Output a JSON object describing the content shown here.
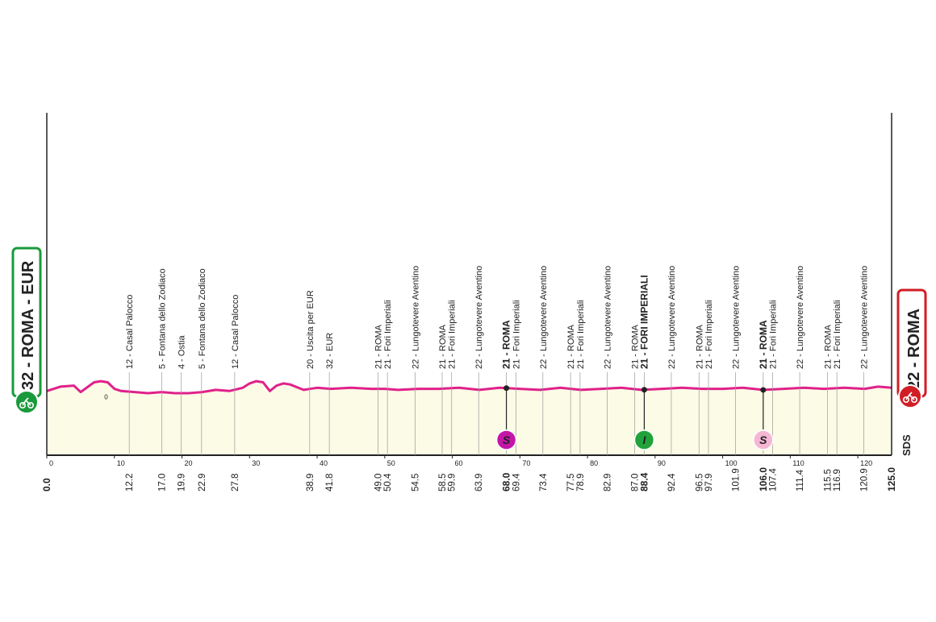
{
  "start": {
    "label": "32 - ROMA - EUR",
    "color": "#1a9a3c"
  },
  "finish": {
    "label": "22 - ROMA",
    "color": "#d11e25"
  },
  "sds_label": "SDS",
  "colors": {
    "profile_line": "#e0218a",
    "profile_fill": "#fbfbe6",
    "sprint_purple": "#c316a8",
    "sprint_green": "#22a33a",
    "sprint_pink": "#f5b6d4"
  },
  "chart_data": {
    "type": "area",
    "title": "",
    "xlabel": "",
    "ylabel": "",
    "xlim": [
      0,
      125
    ],
    "x_ticks": [
      0,
      10,
      20,
      30,
      40,
      50,
      60,
      70,
      80,
      90,
      100,
      110,
      120
    ],
    "altitude_marker": "0",
    "profile": {
      "x": [
        0,
        2,
        4,
        5,
        7,
        8,
        9,
        10,
        11,
        13,
        15,
        17,
        19,
        21,
        23,
        25,
        27,
        29,
        30,
        31,
        32,
        33,
        34,
        35,
        36,
        38,
        40,
        42,
        45,
        48,
        50,
        52,
        55,
        58,
        61,
        64,
        67,
        70,
        73,
        76,
        79,
        82,
        85,
        88,
        91,
        94,
        97,
        100,
        103,
        106,
        109,
        112,
        115,
        118,
        121,
        123,
        125
      ],
      "y": [
        22,
        26,
        27,
        21,
        30,
        31,
        30,
        24,
        22,
        21,
        20,
        21,
        20,
        20,
        21,
        23,
        22,
        25,
        29,
        31,
        30,
        22,
        27,
        29,
        28,
        23,
        25,
        24,
        25,
        24,
        24,
        23,
        24,
        24,
        25,
        23,
        25,
        24,
        23,
        25,
        23,
        24,
        25,
        23,
        24,
        25,
        24,
        24,
        25,
        23,
        24,
        25,
        24,
        25,
        24,
        26,
        25
      ]
    },
    "waypoints": [
      {
        "km": "0.0",
        "place": "",
        "bold": true
      },
      {
        "km": "12.2",
        "place": "12 - Casal Palocco"
      },
      {
        "km": "17.0",
        "place": "5 - Fontana dello Zodiaco"
      },
      {
        "km": "19.9",
        "place": "4 - Ostia"
      },
      {
        "km": "22.9",
        "place": "5 - Fontana dello Zodiaco"
      },
      {
        "km": "27.8",
        "place": "12 - Casal Palocco"
      },
      {
        "km": "38.9",
        "place": "20 - Uscita per EUR"
      },
      {
        "km": "41.8",
        "place": "32 - EUR"
      },
      {
        "km": "49.0",
        "place": "21 - ROMA"
      },
      {
        "km": "50.4",
        "place": "21 - Fori Imperiali"
      },
      {
        "km": "54.5",
        "place": "22 - Lungotevere Aventino"
      },
      {
        "km": "58.5",
        "place": "21 - ROMA"
      },
      {
        "km": "59.9",
        "place": "21 - Fori Imperiali"
      },
      {
        "km": "63.9",
        "place": "22 - Lungotevere Aventino"
      },
      {
        "km": "68.0",
        "place": "21 - ROMA",
        "bold": true
      },
      {
        "km": "69.4",
        "place": "21 - Fori Imperiali"
      },
      {
        "km": "73.4",
        "place": "22 - Lungotevere Aventino"
      },
      {
        "km": "77.5",
        "place": "21 - ROMA"
      },
      {
        "km": "78.9",
        "place": "21 - Fori Imperiali"
      },
      {
        "km": "82.9",
        "place": "22 - Lungotevere Aventino"
      },
      {
        "km": "87.0",
        "place": "21 - ROMA"
      },
      {
        "km": "88.4",
        "place": "21 - FORI IMPERIALI",
        "bold": true
      },
      {
        "km": "92.4",
        "place": "22 - Lungotevere Aventino"
      },
      {
        "km": "96.5",
        "place": "21 - ROMA"
      },
      {
        "km": "97.9",
        "place": "21 - Fori Imperiali"
      },
      {
        "km": "101.9",
        "place": "22 - Lungotevere Aventino"
      },
      {
        "km": "106.0",
        "place": "21 - ROMA",
        "bold": true
      },
      {
        "km": "107.4",
        "place": "21 - Fori Imperiali"
      },
      {
        "km": "111.4",
        "place": "22 - Lungotevere Aventino"
      },
      {
        "km": "115.5",
        "place": "21 - ROMA"
      },
      {
        "km": "116.9",
        "place": "21 - Fori Imperiali"
      },
      {
        "km": "120.9",
        "place": "22 - Lungotevere Aventino"
      },
      {
        "km": "125.0",
        "place": "",
        "bold": true
      }
    ],
    "sprints": [
      {
        "km": 68.0,
        "letter": "S",
        "kind": "purple"
      },
      {
        "km": 88.4,
        "letter": "I",
        "kind": "green"
      },
      {
        "km": 106.0,
        "letter": "S",
        "kind": "pink"
      }
    ]
  }
}
